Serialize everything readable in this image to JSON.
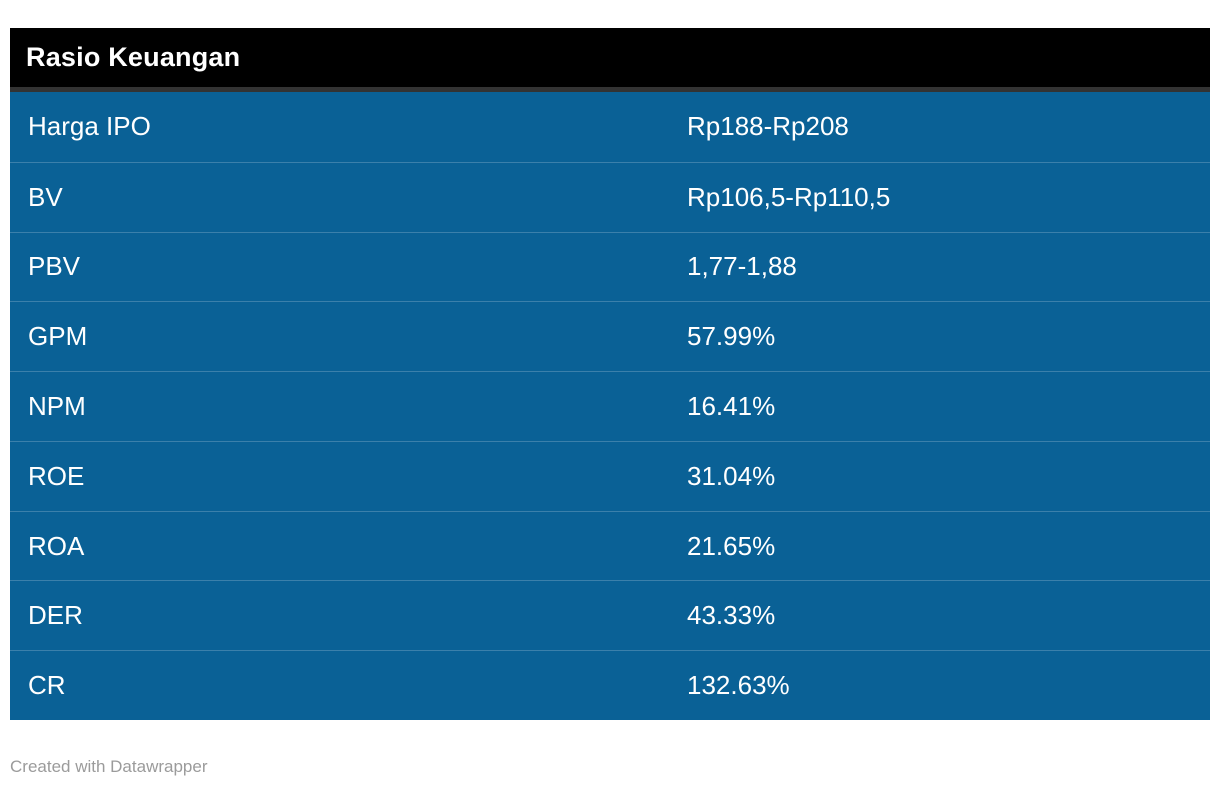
{
  "page": {
    "background": "#ffffff"
  },
  "table": {
    "title": "Rasio Keuangan",
    "header_bg": "#000000",
    "header_border_color": "#333333",
    "title_color": "#ffffff",
    "body_bg": "#0a6196",
    "divider_color": "rgba(255,255,255,0.2)",
    "text_color": "#ffffff",
    "rows": [
      {
        "label": "Harga IPO",
        "value": "Rp188-Rp208"
      },
      {
        "label": "BV",
        "value": "Rp106,5-Rp110,5"
      },
      {
        "label": "PBV",
        "value": "1,77-1,88"
      },
      {
        "label": "GPM",
        "value": "57.99%"
      },
      {
        "label": "NPM",
        "value": "16.41%"
      },
      {
        "label": "ROE",
        "value": "31.04%"
      },
      {
        "label": "ROA",
        "value": "21.65%"
      },
      {
        "label": "DER",
        "value": "43.33%"
      },
      {
        "label": "CR",
        "value": "132.63%"
      }
    ]
  },
  "footer": {
    "attribution": "Created with Datawrapper",
    "color": "#9b9b9b"
  },
  "chart_data": {
    "type": "table",
    "title": "Rasio Keuangan",
    "rows": [
      [
        "Harga IPO",
        "Rp188-Rp208"
      ],
      [
        "BV",
        "Rp106,5-Rp110,5"
      ],
      [
        "PBV",
        "1,77-1,88"
      ],
      [
        "GPM",
        "57.99%"
      ],
      [
        "NPM",
        "16.41%"
      ],
      [
        "ROE",
        "31.04%"
      ],
      [
        "ROA",
        "21.65%"
      ],
      [
        "DER",
        "43.33%"
      ],
      [
        "CR",
        "132.63%"
      ]
    ],
    "layout_hints": {
      "header_style": "black bar with white bold title",
      "body_style": "solid blue rows, white text, subtle light row dividers",
      "columns": 2,
      "grid": "horizontal dividers only"
    }
  }
}
